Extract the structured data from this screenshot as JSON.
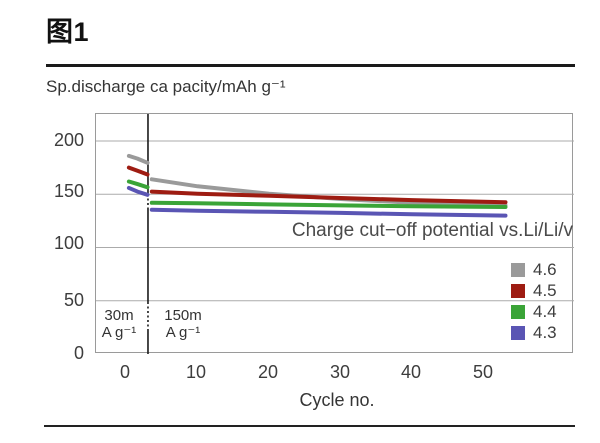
{
  "figure_label": "图1",
  "chart_data": {
    "type": "line",
    "title": "",
    "ylabel": "Sp.discharge ca pacity/mAh g⁻¹",
    "xlabel": "Cycle no.",
    "annotation": "Charge cut−off potential vs.Li/Li/v",
    "ylim": [
      0,
      225
    ],
    "xlim": [
      -4.3,
      62.5
    ],
    "ytick_labels": [
      "200",
      "150",
      "100",
      "50",
      "0"
    ],
    "xtick_labels": [
      "0",
      "10",
      "20",
      "30",
      "40",
      "50"
    ],
    "grid_values": [
      50,
      100,
      150,
      200
    ],
    "grid": "horizontal",
    "legend_position": "right-middle",
    "rate_boundary_cycle": 3.07,
    "rate_regions": [
      {
        "line1": "30m",
        "line2": "A g⁻¹"
      },
      {
        "line1": "150m",
        "line2": "A g⁻¹"
      }
    ],
    "series": [
      {
        "name": "4.6",
        "color": "#9a9a9a",
        "segments": [
          [
            [
              0.4,
              186
            ],
            [
              1.6,
              183.5
            ],
            [
              3,
              179.5
            ]
          ],
          [
            [
              3.6,
              164
            ],
            [
              10,
              157.5
            ],
            [
              20,
              150.5
            ],
            [
              30,
              145.5
            ],
            [
              40,
              142
            ],
            [
              53,
              139.5
            ]
          ]
        ]
      },
      {
        "name": "4.5",
        "color": "#9e1c12",
        "segments": [
          [
            [
              0.4,
              175
            ],
            [
              1.6,
              172
            ],
            [
              3,
              168.5
            ]
          ],
          [
            [
              3.6,
              152.5
            ],
            [
              10,
              150.5
            ],
            [
              20,
              148.5
            ],
            [
              30,
              146.5
            ],
            [
              40,
              144.5
            ],
            [
              53,
              142.5
            ]
          ]
        ]
      },
      {
        "name": "4.4",
        "color": "#3aa437",
        "segments": [
          [
            [
              0.4,
              162
            ],
            [
              1.6,
              159.5
            ],
            [
              3,
              156.5
            ]
          ],
          [
            [
              3.6,
              142
            ],
            [
              10,
              141.5
            ],
            [
              20,
              140.5
            ],
            [
              30,
              139.5
            ],
            [
              40,
              138.8
            ],
            [
              53,
              138
            ]
          ]
        ]
      },
      {
        "name": "4.3",
        "color": "#5a55b4",
        "segments": [
          [
            [
              0.4,
              156
            ],
            [
              1.6,
              152.5
            ],
            [
              3,
              149.5
            ]
          ],
          [
            [
              3.6,
              135.5
            ],
            [
              10,
              134.5
            ],
            [
              20,
              133.5
            ],
            [
              30,
              132.5
            ],
            [
              40,
              131.2
            ],
            [
              53,
              130
            ]
          ]
        ]
      }
    ]
  }
}
